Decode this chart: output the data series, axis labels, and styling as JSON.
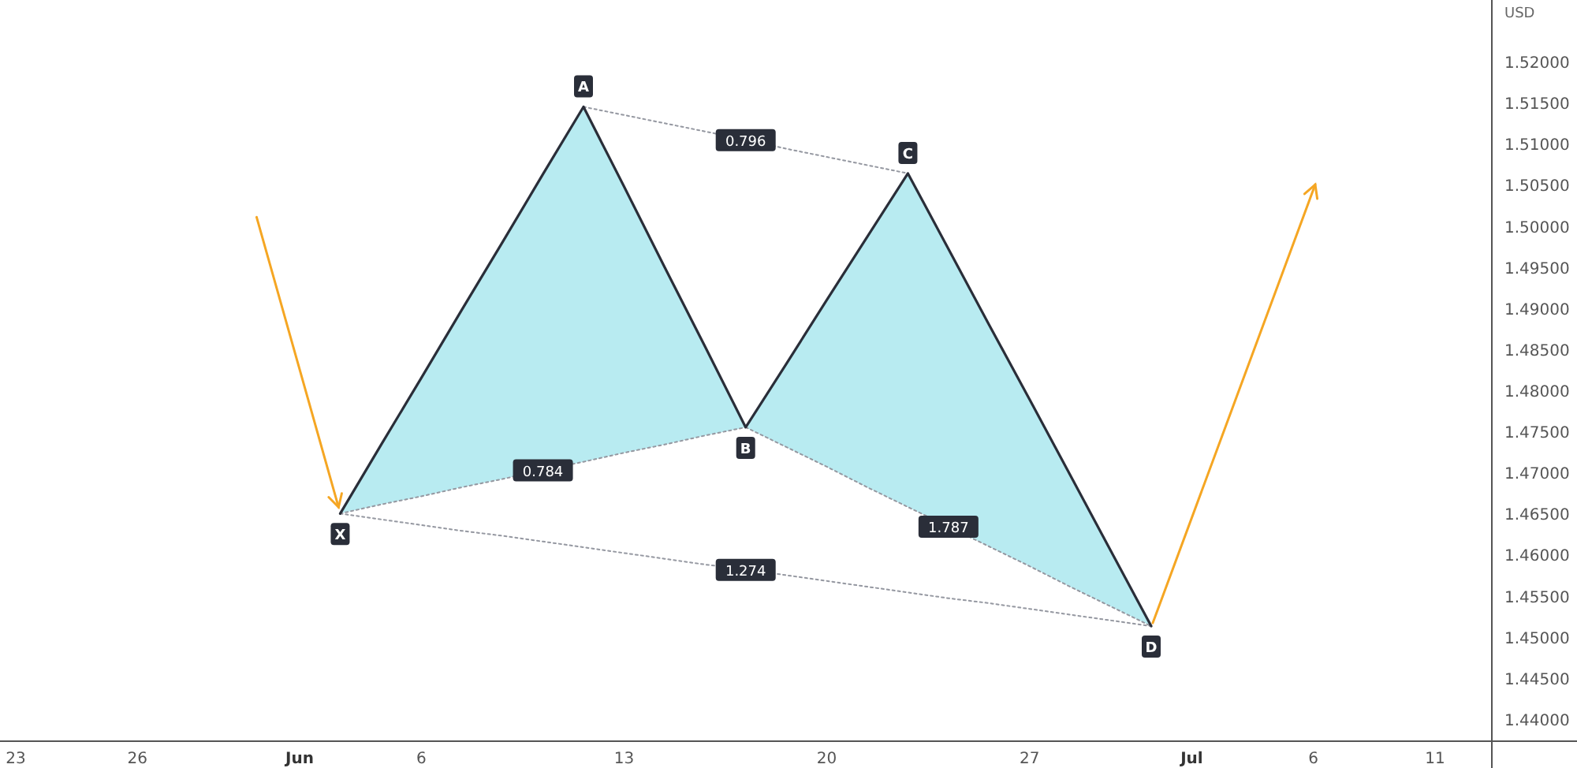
{
  "chart_data": {
    "type": "line",
    "ylabel": "USD",
    "grid": false,
    "categories": [
      "23",
      null,
      null,
      "26",
      null,
      null,
      null,
      "Jun",
      null,
      null,
      "6",
      null,
      null,
      null,
      null,
      "13",
      null,
      null,
      null,
      null,
      "20",
      null,
      null,
      null,
      null,
      "27",
      null,
      null,
      null,
      "Jul",
      null,
      null,
      "6",
      null,
      null,
      "11",
      null
    ],
    "ylim": [
      1.4373,
      1.5275
    ],
    "yticks": [
      {
        "value": 1.44,
        "label": "1.44000"
      },
      {
        "value": 1.445,
        "label": "1.44500"
      },
      {
        "value": 1.45,
        "label": "1.45000"
      },
      {
        "value": 1.455,
        "label": "1.45500"
      },
      {
        "value": 1.46,
        "label": "1.46000"
      },
      {
        "value": 1.465,
        "label": "1.46500"
      },
      {
        "value": 1.47,
        "label": "1.47000"
      },
      {
        "value": 1.475,
        "label": "1.47500"
      },
      {
        "value": 1.48,
        "label": "1.48000"
      },
      {
        "value": 1.485,
        "label": "1.48500"
      },
      {
        "value": 1.49,
        "label": "1.49000"
      },
      {
        "value": 1.495,
        "label": "1.49500"
      },
      {
        "value": 1.5,
        "label": "1.50000"
      },
      {
        "value": 1.505,
        "label": "1.50500"
      },
      {
        "value": 1.51,
        "label": "1.51000"
      },
      {
        "value": 1.515,
        "label": "1.51500"
      },
      {
        "value": 1.52,
        "label": "1.52000"
      }
    ],
    "series": [
      {
        "type": "area",
        "color": "#b8ebf1",
        "values": [
          null,
          null,
          null,
          null,
          null,
          null,
          null,
          null,
          1.465,
          1.4733,
          1.4815,
          1.4898,
          1.498,
          1.5063,
          1.5145,
          1.5048,
          1.495,
          1.4853,
          1.4755,
          null,
          null,
          null,
          null,
          null,
          null,
          null,
          null,
          null,
          null,
          null,
          null,
          null,
          null,
          null,
          null,
          null,
          null
        ]
      },
      {
        "type": "area",
        "color": "#b8ebf1",
        "values": [
          null,
          null,
          null,
          null,
          null,
          null,
          null,
          null,
          null,
          null,
          null,
          null,
          null,
          null,
          null,
          null,
          null,
          null,
          1.4755,
          1.4832,
          1.491,
          1.4987,
          1.5064,
          1.4972,
          1.488,
          1.4789,
          1.4697,
          1.4605,
          1.4513,
          null,
          null,
          null,
          null,
          null,
          null,
          null,
          null
        ]
      },
      {
        "color": "#9598a1",
        "line_style": "dotted",
        "values": [
          null,
          null,
          null,
          null,
          null,
          null,
          null,
          null,
          1.465,
          1.4661,
          1.4671,
          1.4682,
          1.4692,
          1.4703,
          1.4713,
          1.4724,
          1.4734,
          1.4745,
          1.4755,
          null,
          null,
          null,
          null,
          null,
          null,
          null,
          null,
          null,
          null,
          null,
          null,
          null,
          null,
          null,
          null,
          null,
          null
        ]
      },
      {
        "color": "#9598a1",
        "line_style": "dotted",
        "values": [
          null,
          null,
          null,
          null,
          null,
          null,
          null,
          null,
          null,
          null,
          null,
          null,
          null,
          null,
          1.5145,
          1.5135,
          1.5125,
          1.5115,
          1.5105,
          1.5094,
          1.5084,
          1.5074,
          1.5064,
          null,
          null,
          null,
          null,
          null,
          null,
          null,
          null,
          null,
          null,
          null,
          null,
          null,
          null
        ]
      },
      {
        "color": "#9598a1",
        "line_style": "dotted",
        "values": [
          null,
          null,
          null,
          null,
          null,
          null,
          null,
          null,
          null,
          null,
          null,
          null,
          null,
          null,
          null,
          null,
          null,
          null,
          1.4755,
          1.4731,
          1.4707,
          1.4682,
          1.4658,
          1.4634,
          1.461,
          1.4586,
          1.4561,
          1.4537,
          1.4513,
          null,
          null,
          null,
          null,
          null,
          null,
          null,
          null
        ]
      },
      {
        "color": "#9598a1",
        "line_style": "dotted",
        "values": [
          null,
          null,
          null,
          null,
          null,
          null,
          null,
          null,
          1.465,
          1.4643,
          1.4636,
          1.4629,
          1.4623,
          1.4616,
          1.4609,
          1.4602,
          1.4595,
          1.4588,
          1.4582,
          1.4575,
          1.4568,
          1.4561,
          1.4554,
          1.4547,
          1.4541,
          1.4534,
          1.4527,
          1.452,
          1.4513,
          null,
          null,
          null,
          null,
          null,
          null,
          null,
          null
        ]
      },
      {
        "color": "#2a2e39",
        "line_style": "solid",
        "values": [
          null,
          null,
          null,
          null,
          null,
          null,
          null,
          null,
          1.465,
          1.4733,
          1.4815,
          1.4898,
          1.498,
          1.5063,
          1.5145,
          1.5048,
          1.495,
          1.4853,
          1.4755,
          1.4832,
          1.491,
          1.4987,
          1.5064,
          1.4972,
          1.488,
          1.4789,
          1.4697,
          1.4605,
          1.4513,
          null,
          null,
          null,
          null,
          null,
          null,
          null,
          null
        ]
      }
    ],
    "annotations": [
      "X",
      "A",
      "B",
      "C",
      "D",
      "0.784",
      "0.796",
      "1.787",
      "1.274"
    ]
  }
}
